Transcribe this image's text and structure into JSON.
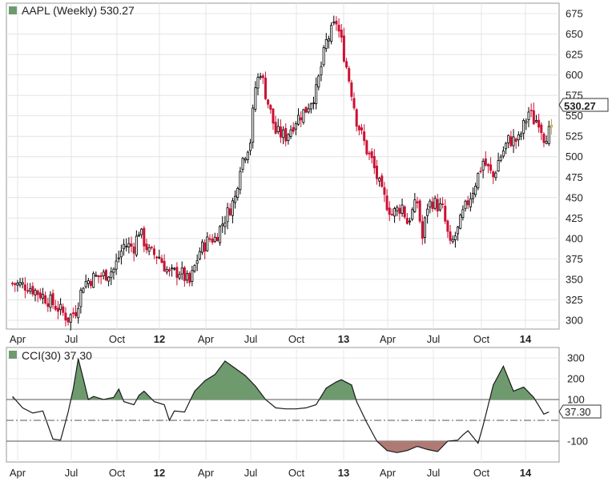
{
  "chart_data": [
    {
      "type": "candlestick",
      "title": "AAPL (Weekly) 530.27",
      "last_price_label": "530.27",
      "ylim": [
        290,
        680
      ],
      "yticks": [
        300,
        325,
        350,
        375,
        400,
        425,
        450,
        475,
        500,
        525,
        550,
        575,
        600,
        625,
        650,
        675
      ],
      "x_tick_labels": [
        {
          "label": "Apr",
          "bold": false
        },
        {
          "label": "Jul",
          "bold": false
        },
        {
          "label": "Oct",
          "bold": false
        },
        {
          "label": "12",
          "bold": true
        },
        {
          "label": "Apr",
          "bold": false
        },
        {
          "label": "Jul",
          "bold": false
        },
        {
          "label": "Oct",
          "bold": false
        },
        {
          "label": "13",
          "bold": true
        },
        {
          "label": "Apr",
          "bold": false
        },
        {
          "label": "Jul",
          "bold": false
        },
        {
          "label": "Oct",
          "bold": false
        },
        {
          "label": "14",
          "bold": true
        }
      ],
      "up_color": "#000000",
      "down_color": "#cc1133",
      "last_marker_color": "#f0e08a",
      "close_path": [
        [
          0,
          345
        ],
        [
          6,
          342
        ],
        [
          12,
          330
        ],
        [
          18,
          315
        ],
        [
          22,
          302
        ],
        [
          25,
          312
        ],
        [
          28,
          345
        ],
        [
          32,
          352
        ],
        [
          36,
          355
        ],
        [
          40,
          362
        ],
        [
          44,
          392
        ],
        [
          48,
          390
        ],
        [
          50,
          410
        ],
        [
          54,
          383
        ],
        [
          58,
          378
        ],
        [
          62,
          356
        ],
        [
          66,
          360
        ],
        [
          70,
          345
        ],
        [
          74,
          385
        ],
        [
          78,
          400
        ],
        [
          80,
          400
        ],
        [
          84,
          425
        ],
        [
          88,
          450
        ],
        [
          90,
          490
        ],
        [
          94,
          520
        ],
        [
          96,
          585
        ],
        [
          98,
          605
        ],
        [
          100,
          578
        ],
        [
          104,
          530
        ],
        [
          108,
          525
        ],
        [
          112,
          545
        ],
        [
          116,
          558
        ],
        [
          120,
          580
        ],
        [
          124,
          640
        ],
        [
          128,
          665
        ],
        [
          130,
          640
        ],
        [
          134,
          580
        ],
        [
          136,
          545
        ],
        [
          140,
          508
        ],
        [
          142,
          495
        ],
        [
          146,
          455
        ],
        [
          150,
          430
        ],
        [
          154,
          440
        ],
        [
          156,
          420
        ],
        [
          160,
          445
        ],
        [
          162,
          400
        ],
        [
          164,
          440
        ],
        [
          166,
          445
        ],
        [
          170,
          435
        ],
        [
          173,
          390
        ],
        [
          176,
          410
        ],
        [
          178,
          430
        ],
        [
          182,
          460
        ],
        [
          186,
          495
        ],
        [
          188,
          485
        ],
        [
          190,
          475
        ],
        [
          192,
          495
        ],
        [
          196,
          520
        ],
        [
          200,
          520
        ],
        [
          204,
          555
        ],
        [
          206,
          545
        ],
        [
          208,
          545
        ],
        [
          210,
          525
        ],
        [
          212,
          530
        ]
      ]
    },
    {
      "type": "line",
      "title": "CCI(30) 37.30",
      "last_value_label": "37.30",
      "ylim": [
        -200,
        330
      ],
      "yticks": [
        300,
        200,
        100,
        0,
        -100
      ],
      "reference_lines": [
        100,
        0,
        -100
      ],
      "fill_above_color": "#6e9a6e",
      "fill_below_color": "#b07a74",
      "x_tick_labels": [
        {
          "label": "Apr",
          "bold": false
        },
        {
          "label": "Jul",
          "bold": false
        },
        {
          "label": "Oct",
          "bold": false
        },
        {
          "label": "12",
          "bold": true
        },
        {
          "label": "Apr",
          "bold": false
        },
        {
          "label": "Jul",
          "bold": false
        },
        {
          "label": "Oct",
          "bold": false
        },
        {
          "label": "13",
          "bold": true
        },
        {
          "label": "Apr",
          "bold": false
        },
        {
          "label": "Jul",
          "bold": false
        },
        {
          "label": "Oct",
          "bold": false
        },
        {
          "label": "14",
          "bold": true
        }
      ],
      "x": [
        0,
        4,
        8,
        12,
        16,
        19,
        20,
        22,
        24,
        26,
        28,
        30,
        32,
        36,
        40,
        42,
        44,
        48,
        50,
        52,
        56,
        60,
        62,
        64,
        68,
        72,
        76,
        80,
        84,
        88,
        92,
        96,
        100,
        104,
        108,
        112,
        116,
        120,
        124,
        128,
        130,
        134,
        136,
        140,
        144,
        148,
        152,
        156,
        160,
        164,
        168,
        172,
        176,
        178,
        180,
        184,
        186,
        190,
        194,
        198,
        202,
        206,
        210,
        212
      ],
      "values": [
        115,
        60,
        35,
        45,
        -90,
        -95,
        -50,
        40,
        150,
        295,
        200,
        100,
        115,
        100,
        110,
        150,
        90,
        75,
        120,
        140,
        90,
        75,
        0,
        45,
        40,
        140,
        190,
        220,
        285,
        250,
        215,
        165,
        100,
        60,
        55,
        55,
        60,
        75,
        155,
        185,
        195,
        170,
        90,
        -10,
        -100,
        -145,
        -155,
        -145,
        -125,
        -140,
        -150,
        -100,
        -95,
        -70,
        -50,
        -110,
        -25,
        170,
        260,
        140,
        160,
        110,
        30,
        40
      ]
    }
  ]
}
